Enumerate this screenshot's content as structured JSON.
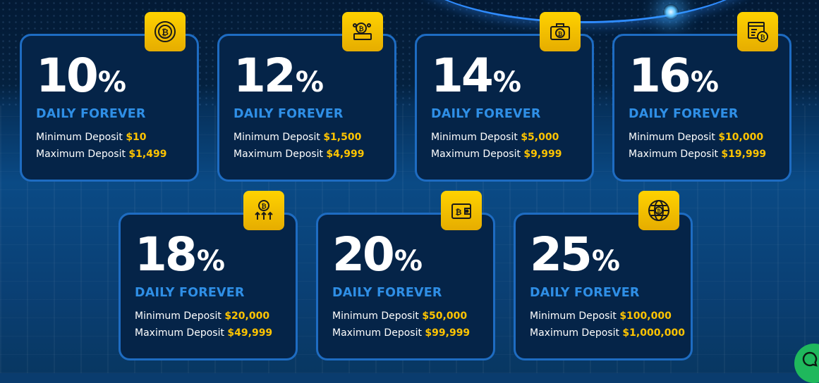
{
  "plans": [
    {
      "rate": "10",
      "suffix": "%",
      "period": "DAILY FOREVER",
      "min_label": "Minimum Deposit",
      "min_amount": "$10",
      "max_label": "Maximum Deposit",
      "max_amount": "$1,499",
      "icon": "bitcoin-coin-icon"
    },
    {
      "rate": "12",
      "suffix": "%",
      "period": "DAILY FOREVER",
      "min_label": "Minimum Deposit",
      "min_amount": "$1,500",
      "max_label": "Maximum Deposit",
      "max_amount": "$4,999",
      "icon": "bitcoin-network-icon"
    },
    {
      "rate": "14",
      "suffix": "%",
      "period": "DAILY FOREVER",
      "min_label": "Minimum Deposit",
      "min_amount": "$5,000",
      "max_label": "Maximum Deposit",
      "max_amount": "$9,999",
      "icon": "bitcoin-briefcase-icon"
    },
    {
      "rate": "16",
      "suffix": "%",
      "period": "DAILY FOREVER",
      "min_label": "Minimum Deposit",
      "min_amount": "$10,000",
      "max_label": "Maximum Deposit",
      "max_amount": "$19,999",
      "icon": "bitcoin-browser-icon"
    },
    {
      "rate": "18",
      "suffix": "%",
      "period": "DAILY FOREVER",
      "min_label": "Minimum Deposit",
      "min_amount": "$20,000",
      "max_label": "Maximum Deposit",
      "max_amount": "$49,999",
      "icon": "bitcoin-growth-icon"
    },
    {
      "rate": "20",
      "suffix": "%",
      "period": "DAILY FOREVER",
      "min_label": "Minimum Deposit",
      "min_amount": "$50,000",
      "max_label": "Maximum Deposit",
      "max_amount": "$99,999",
      "icon": "bitcoin-wallet-icon"
    },
    {
      "rate": "25",
      "suffix": "%",
      "period": "DAILY FOREVER",
      "min_label": "Minimum Deposit",
      "min_amount": "$100,000",
      "max_label": "Maximum Deposit",
      "max_amount": "$1,000,000",
      "icon": "bitcoin-globe-icon"
    }
  ],
  "colors": {
    "accent": "#ffc400",
    "daily_text": "#2f8fe6",
    "card_border": "#1e6cc2",
    "card_bg": "#052448",
    "chat": "#1fb85c"
  },
  "chat_widget": {
    "icon": "chat-bubble-icon"
  }
}
